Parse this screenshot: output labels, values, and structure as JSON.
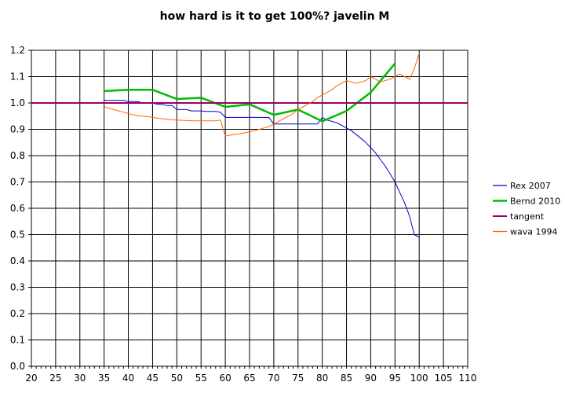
{
  "chart_data": {
    "type": "line",
    "title": "how hard is it to get 100%? javelin M",
    "xlabel": "",
    "ylabel": "",
    "xlim": [
      20,
      110
    ],
    "ylim": [
      0,
      1.2
    ],
    "x_ticks": [
      "20",
      "25",
      "30",
      "35",
      "40",
      "45",
      "50",
      "55",
      "60",
      "65",
      "70",
      "75",
      "80",
      "85",
      "90",
      "95",
      "100",
      "105",
      "110"
    ],
    "y_ticks": [
      "0.0",
      "0.1",
      "0.2",
      "0.3",
      "0.4",
      "0.5",
      "0.6",
      "0.7",
      "0.8",
      "0.9",
      "1.0",
      "1.1",
      "1.2"
    ],
    "grid": true,
    "legend_position": "right",
    "series": [
      {
        "name": "Rex 2007",
        "color": "#0000cc",
        "x": [
          35,
          36,
          37,
          38,
          39,
          40,
          41,
          42,
          43,
          44,
          45,
          46,
          47,
          48,
          49,
          50,
          51,
          52,
          53,
          54,
          55,
          56,
          57,
          58,
          59,
          60,
          61,
          62,
          63,
          64,
          65,
          66,
          67,
          68,
          69,
          70,
          71,
          72,
          73,
          74,
          75,
          76,
          77,
          78,
          79,
          80,
          81,
          82,
          83,
          84,
          85,
          86,
          87,
          88,
          89,
          90,
          91,
          92,
          93,
          94,
          95,
          96,
          97,
          98,
          99,
          100
        ],
        "values": [
          1.01,
          1.01,
          1.01,
          1.01,
          1.01,
          1.005,
          1.005,
          1.005,
          1.0,
          1.0,
          1.0,
          0.995,
          0.995,
          0.99,
          0.99,
          0.975,
          0.975,
          0.975,
          0.97,
          0.97,
          0.97,
          0.968,
          0.968,
          0.968,
          0.965,
          0.945,
          0.945,
          0.945,
          0.945,
          0.945,
          0.945,
          0.945,
          0.945,
          0.945,
          0.945,
          0.92,
          0.92,
          0.92,
          0.92,
          0.92,
          0.92,
          0.92,
          0.92,
          0.92,
          0.92,
          0.945,
          0.935,
          0.93,
          0.925,
          0.915,
          0.905,
          0.895,
          0.88,
          0.865,
          0.85,
          0.83,
          0.81,
          0.785,
          0.76,
          0.73,
          0.7,
          0.66,
          0.62,
          0.57,
          0.5,
          0.49
        ]
      },
      {
        "name": "Bernd 2010",
        "color": "#00bb00",
        "x": [
          35,
          40,
          45,
          50,
          55,
          60,
          65,
          70,
          75,
          80,
          85,
          90,
          95
        ],
        "values": [
          1.045,
          1.05,
          1.05,
          1.015,
          1.02,
          0.985,
          0.995,
          0.955,
          0.975,
          0.93,
          0.97,
          1.04,
          1.15
        ]
      },
      {
        "name": "tangent",
        "color": "#990066",
        "x": [
          20,
          110
        ],
        "values": [
          1.0,
          1.0
        ]
      },
      {
        "name": "wava 1994",
        "color": "#ff6600",
        "x": [
          35,
          36,
          37,
          38,
          39,
          40,
          41,
          42,
          43,
          44,
          45,
          46,
          47,
          48,
          49,
          50,
          51,
          52,
          53,
          54,
          55,
          56,
          57,
          58,
          59,
          60,
          61,
          62,
          63,
          64,
          65,
          66,
          67,
          68,
          69,
          70,
          71,
          72,
          73,
          74,
          75,
          76,
          77,
          78,
          79,
          80,
          81,
          82,
          83,
          84,
          85,
          86,
          87,
          88,
          89,
          90,
          91,
          92,
          93,
          94,
          95,
          96,
          97,
          98,
          99,
          100
        ],
        "values": [
          0.985,
          0.98,
          0.975,
          0.97,
          0.965,
          0.96,
          0.955,
          0.952,
          0.95,
          0.948,
          0.945,
          0.942,
          0.94,
          0.938,
          0.936,
          0.935,
          0.934,
          0.933,
          0.932,
          0.932,
          0.932,
          0.932,
          0.932,
          0.932,
          0.935,
          0.875,
          0.878,
          0.88,
          0.883,
          0.887,
          0.89,
          0.895,
          0.9,
          0.905,
          0.91,
          0.92,
          0.93,
          0.94,
          0.95,
          0.96,
          0.975,
          0.985,
          0.995,
          1.005,
          1.02,
          1.03,
          1.04,
          1.05,
          1.065,
          1.075,
          1.085,
          1.08,
          1.075,
          1.08,
          1.085,
          1.1,
          1.09,
          1.08,
          1.085,
          1.09,
          1.1,
          1.11,
          1.1,
          1.09,
          1.13,
          1.19
        ]
      }
    ]
  }
}
